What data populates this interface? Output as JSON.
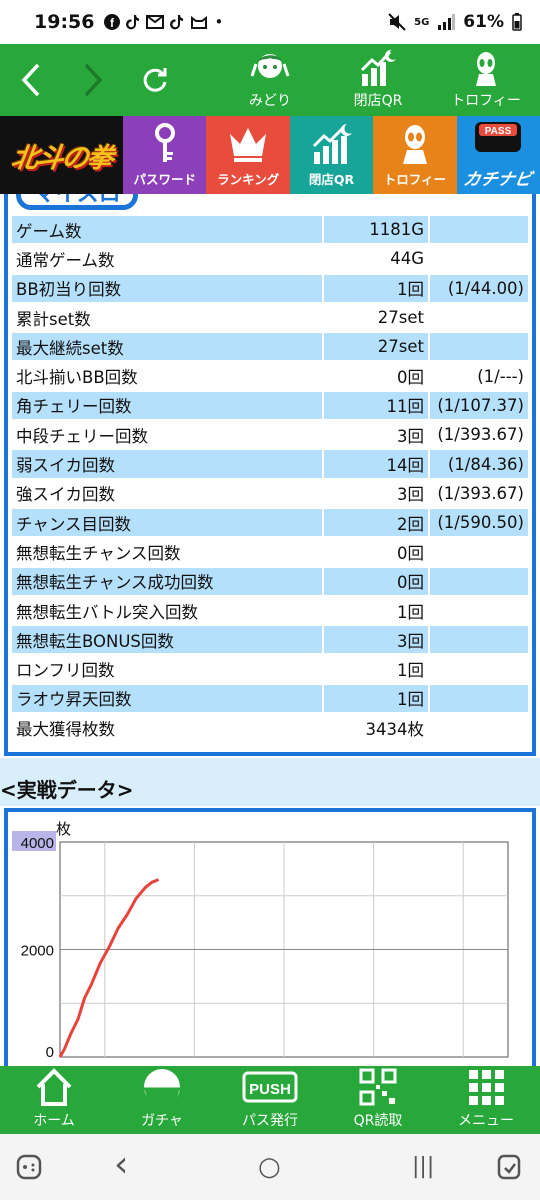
{
  "status_bar": {
    "time": "19:56",
    "notif_icons": [
      "facebook-icon",
      "tiktok-icon",
      "mail-icon",
      "tiktok-icon",
      "cat-icon"
    ],
    "dot": "•",
    "battery": "61%",
    "network": "5G"
  },
  "top_nav": {
    "items": [
      {
        "label": "みどり",
        "icon": "character-icon"
      },
      {
        "label": "閉店QR",
        "icon": "chart-up-icon"
      },
      {
        "label": "トロフィー",
        "icon": "alien-icon"
      }
    ]
  },
  "banner": {
    "logo": "北斗の拳",
    "items": [
      {
        "label": "パスワード",
        "icon": "key-icon",
        "color": "#8b3fb8"
      },
      {
        "label": "ランキング",
        "icon": "crown-icon",
        "color": "#e84c3d"
      },
      {
        "label": "閉店QR",
        "icon": "chart-up-icon",
        "color": "#17a59a"
      },
      {
        "label": "トロフィー",
        "icon": "alien-icon",
        "color": "#e8831a"
      },
      {
        "label": "カチナビ",
        "icon": "pass-icon",
        "color": "#1b8fe0"
      }
    ]
  },
  "panel": {
    "pill_text": "マイスロ"
  },
  "stats": [
    {
      "label": "ゲーム数",
      "value": "1181G",
      "ratio": ""
    },
    {
      "label": "通常ゲーム数",
      "value": "44G",
      "ratio": ""
    },
    {
      "label": "BB初当り回数",
      "value": "1回",
      "ratio": "(1/44.00)"
    },
    {
      "label": "累計set数",
      "value": "27set",
      "ratio": ""
    },
    {
      "label": "最大継続set数",
      "value": "27set",
      "ratio": ""
    },
    {
      "label": "北斗揃いBB回数",
      "value": "0回",
      "ratio": "(1/---)"
    },
    {
      "label": "角チェリー回数",
      "value": "11回",
      "ratio": "(1/107.37)"
    },
    {
      "label": "中段チェリー回数",
      "value": "3回",
      "ratio": "(1/393.67)"
    },
    {
      "label": "弱スイカ回数",
      "value": "14回",
      "ratio": "(1/84.36)"
    },
    {
      "label": "強スイカ回数",
      "value": "3回",
      "ratio": "(1/393.67)"
    },
    {
      "label": "チャンス目回数",
      "value": "2回",
      "ratio": "(1/590.50)"
    },
    {
      "label": "無想転生チャンス回数",
      "value": "0回",
      "ratio": ""
    },
    {
      "label": "無想転生チャンス成功回数",
      "value": "0回",
      "ratio": ""
    },
    {
      "label": "無想転生バトル突入回数",
      "value": "1回",
      "ratio": ""
    },
    {
      "label": "無想転生BONUS回数",
      "value": "3回",
      "ratio": ""
    },
    {
      "label": "ロンフリ回数",
      "value": "1回",
      "ratio": ""
    },
    {
      "label": "ラオウ昇天回数",
      "value": "1回",
      "ratio": ""
    },
    {
      "label": "最大獲得枚数",
      "value": "3434枚",
      "ratio": ""
    }
  ],
  "section": {
    "title": "<実戦データ>"
  },
  "chart_data": {
    "type": "line",
    "ylabel": "枚",
    "ylim": [
      0,
      4000
    ],
    "y_ticks": [
      "4000",
      "2000",
      "0"
    ],
    "xlim": [
      0,
      10
    ],
    "grid": true,
    "series": [
      {
        "color": "#e8423a",
        "x": [
          0,
          0.1,
          0.25,
          0.4,
          0.55,
          0.7,
          0.9,
          1.1,
          1.3,
          1.5,
          1.7,
          1.9,
          2.05,
          2.2
        ],
        "y": [
          0,
          150,
          450,
          700,
          1100,
          1350,
          1750,
          2050,
          2400,
          2650,
          2950,
          3150,
          3250,
          3300
        ]
      }
    ]
  },
  "bottom_nav": {
    "items": [
      {
        "label": "ホーム",
        "icon": "home-icon"
      },
      {
        "label": "ガチャ",
        "icon": "gacha-icon"
      },
      {
        "label": "パス発行",
        "icon": "push-icon"
      },
      {
        "label": "QR読取",
        "icon": "qr-icon"
      },
      {
        "label": "メニュー",
        "icon": "grid-icon"
      }
    ]
  },
  "system_nav": {
    "back": "‹",
    "home": "○",
    "recents": "|||"
  }
}
